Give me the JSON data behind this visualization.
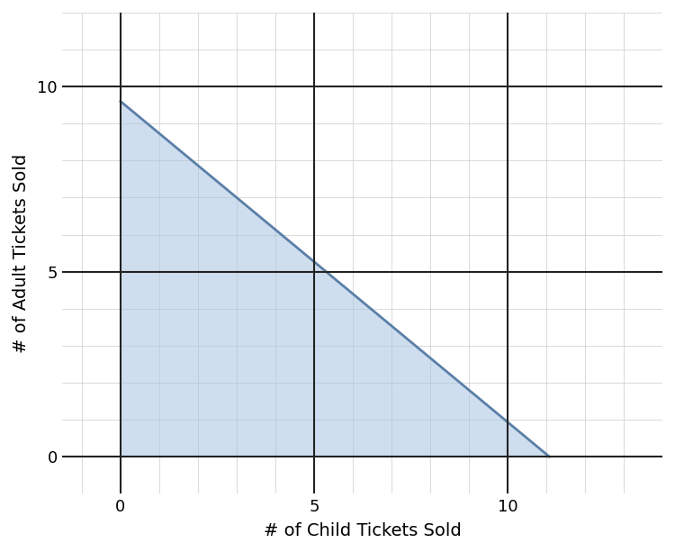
{
  "xlabel": "# of Child Tickets Sold",
  "ylabel": "# of Adult Tickets Sold",
  "xlim": [
    -1.5,
    13.5
  ],
  "ylim": [
    -1.0,
    11.5
  ],
  "xticks": [
    0,
    5,
    10
  ],
  "yticks": [
    0,
    5,
    10
  ],
  "coeff_x": 6.5,
  "coeff_y": 7.5,
  "rhs": 72,
  "line_color": "#5a7fa8",
  "fill_color": "#a8c4e0",
  "fill_alpha": 0.55,
  "line_width": 2.0,
  "minor_grid_color": "#cccccc",
  "minor_grid_linewidth": 0.5,
  "major_grid_color": "#222222",
  "major_grid_linewidth": 1.5,
  "xlabel_fontsize": 14,
  "ylabel_fontsize": 14,
  "tick_fontsize": 13,
  "figure_bg": "#ffffff",
  "axes_bg": "#ffffff"
}
